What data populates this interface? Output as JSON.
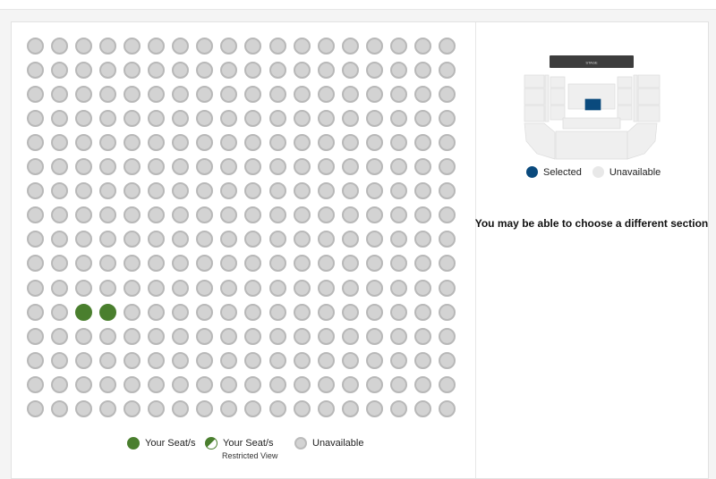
{
  "seating": {
    "rows": 16,
    "cols": 18,
    "selected_seats": [
      [
        11,
        2
      ],
      [
        11,
        3
      ]
    ],
    "colors": {
      "selected": "#4a7f2e",
      "unavailable": "#d3d3d3"
    }
  },
  "legend": {
    "your_seats": "Your Seat/s",
    "restricted": "Your Seat/s",
    "restricted_sub": "Restricted View",
    "unavailable": "Unavailable"
  },
  "venue_map": {
    "stage_label": "STAGE",
    "selected_label": "Selected",
    "unavailable_label": "Unavailable",
    "colors": {
      "selected": "#0a4a7d",
      "unavailable": "#e8e8e8",
      "stage": "#3d3d3d"
    }
  },
  "message": "You may be able to choose a different section"
}
